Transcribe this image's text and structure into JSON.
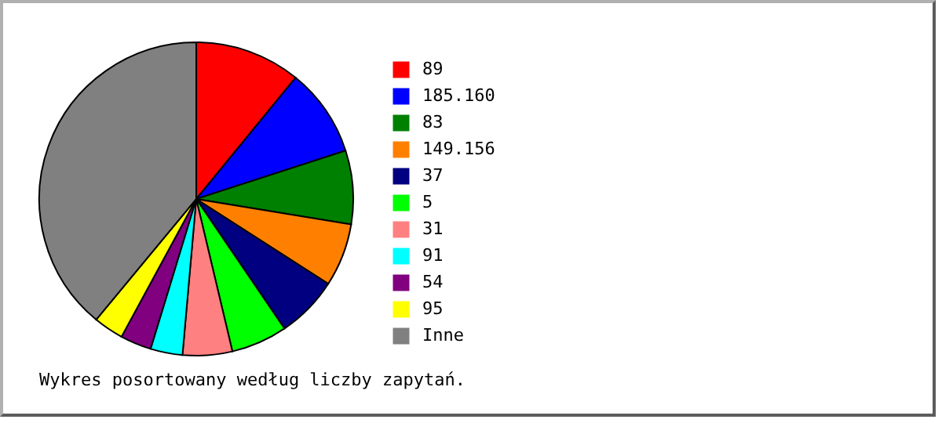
{
  "chart_data": {
    "type": "pie",
    "categories": [
      "89",
      "185.160",
      "83",
      "149.156",
      "37",
      "5",
      "31",
      "91",
      "54",
      "95",
      "Inne"
    ],
    "values": [
      10.9,
      9.1,
      7.6,
      6.5,
      6.4,
      5.8,
      5.1,
      3.3,
      3.2,
      3.1,
      39.0
    ],
    "colors": [
      "#ff0000",
      "#0000ff",
      "#008000",
      "#ff8000",
      "#000080",
      "#00ff00",
      "#ff8080",
      "#00ffff",
      "#800080",
      "#ffff00",
      "#808080"
    ],
    "legend": "right",
    "annotations": [
      "Wykres posortowany według liczby zapytań."
    ]
  }
}
